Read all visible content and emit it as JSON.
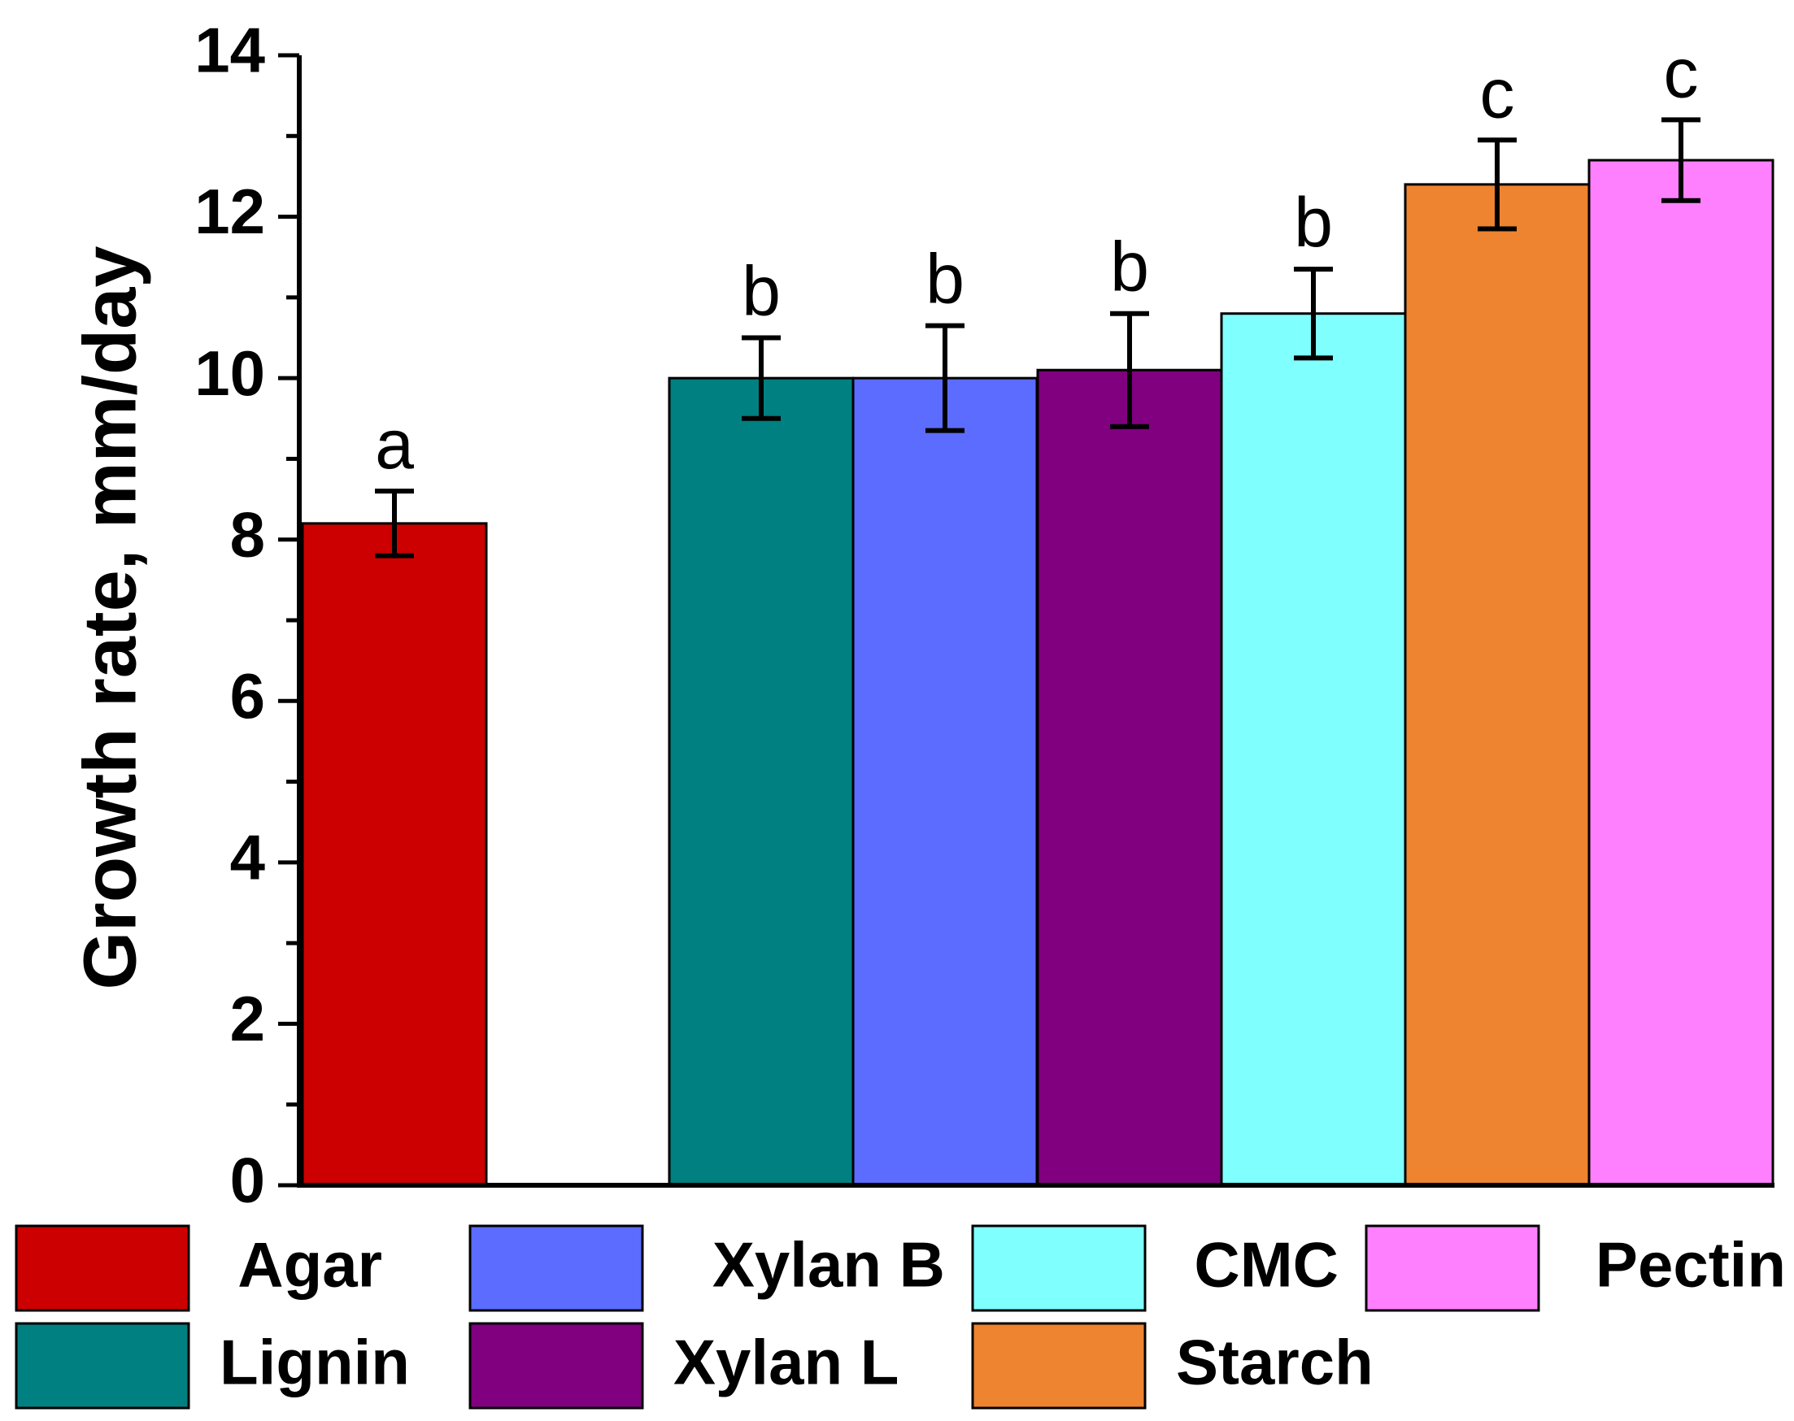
{
  "chart_data": {
    "type": "bar",
    "title": "",
    "xlabel": "",
    "ylabel": "Growth rate, mm/day",
    "ylim": [
      0,
      14
    ],
    "yticks": [
      0,
      2,
      4,
      6,
      8,
      10,
      12,
      14
    ],
    "grid": false,
    "categories": [
      "Agar",
      "Lignin",
      "Xylan B",
      "Xylan L",
      "CMC",
      "Starch",
      "Pectin"
    ],
    "values": [
      8.2,
      10.0,
      10.0,
      10.1,
      10.8,
      12.4,
      12.7
    ],
    "errors": [
      0.4,
      0.5,
      0.65,
      0.7,
      0.55,
      0.55,
      0.5
    ],
    "significance": [
      "a",
      "b",
      "b",
      "b",
      "b",
      "c",
      "c"
    ],
    "colors": [
      "#cc0000",
      "#008080",
      "#5c6cff",
      "#800080",
      "#80ffff",
      "#ee8330",
      "#ff80ff"
    ],
    "legend": [
      {
        "label": "Agar",
        "color": "#cc0000"
      },
      {
        "label": "Xylan B",
        "color": "#5c6cff"
      },
      {
        "label": "CMC",
        "color": "#80ffff"
      },
      {
        "label": "Pectin",
        "color": "#ff80ff"
      },
      {
        "label": "Lignin",
        "color": "#008080"
      },
      {
        "label": "Xylan L",
        "color": "#800080"
      },
      {
        "label": "Starch",
        "color": "#ee8330"
      }
    ],
    "legend_position": "bottom"
  }
}
